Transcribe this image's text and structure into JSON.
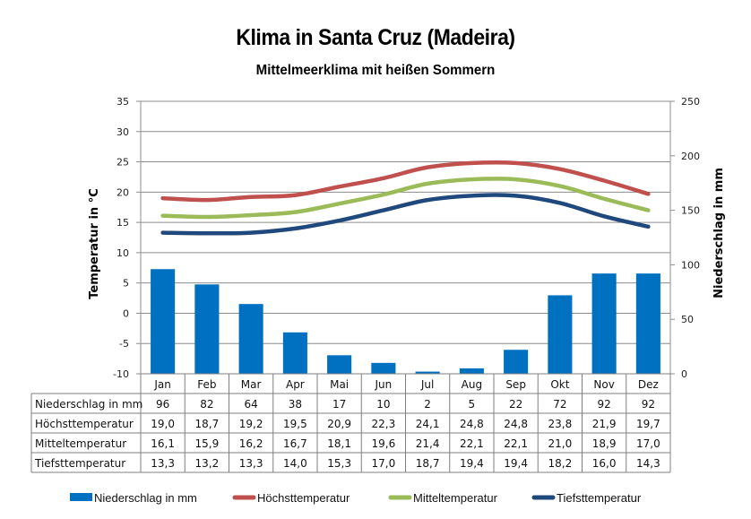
{
  "header": {
    "title": "Klima in Santa Cruz (Madeira)",
    "subtitle": "Mittelmeerklima mit heißen Sommern"
  },
  "chart_data": {
    "type": "bar+line",
    "title": "Klima in Santa Cruz (Madeira)",
    "subtitle": "Mittelmeerklima mit heißen Sommern",
    "categories": [
      "Jan",
      "Feb",
      "Mar",
      "Apr",
      "Mai",
      "Jun",
      "Jul",
      "Aug",
      "Sep",
      "Okt",
      "Nov",
      "Dez"
    ],
    "y_left": {
      "label": "Temperatur  in  °C",
      "range": [
        -10,
        35
      ],
      "ticks": [
        "35",
        "30",
        "25",
        "20",
        "15",
        "10",
        "5",
        "0",
        "-5",
        "-10"
      ]
    },
    "y_right": {
      "label": "Niederschlag  in  mm",
      "range": [
        0,
        250
      ],
      "ticks": [
        "250",
        "200",
        "150",
        "100",
        "50",
        "0"
      ]
    },
    "grid": true,
    "series": [
      {
        "name": "Niederschlag in mm",
        "type": "bar",
        "axis": "right",
        "color": "#0070C0",
        "values": [
          96,
          82,
          64,
          38,
          17,
          10,
          2,
          5,
          22,
          72,
          92,
          92
        ],
        "labels": [
          "96",
          "82",
          "64",
          "38",
          "17",
          "10",
          "2",
          "5",
          "22",
          "72",
          "92",
          "92"
        ]
      },
      {
        "name": "Höchsttemperatur",
        "type": "line",
        "axis": "left",
        "color": "#C0504D",
        "values": [
          19.0,
          18.7,
          19.2,
          19.5,
          20.9,
          22.3,
          24.1,
          24.8,
          24.8,
          23.8,
          21.9,
          19.7
        ],
        "labels": [
          "19,0",
          "18,7",
          "19,2",
          "19,5",
          "20,9",
          "22,3",
          "24,1",
          "24,8",
          "24,8",
          "23,8",
          "21,9",
          "19,7"
        ]
      },
      {
        "name": "Mitteltemperatur",
        "type": "line",
        "axis": "left",
        "color": "#9BBB59",
        "values": [
          16.1,
          15.9,
          16.2,
          16.7,
          18.1,
          19.6,
          21.4,
          22.1,
          22.1,
          21.0,
          18.9,
          17.0
        ],
        "labels": [
          "16,1",
          "15,9",
          "16,2",
          "16,7",
          "18,1",
          "19,6",
          "21,4",
          "22,1",
          "22,1",
          "21,0",
          "18,9",
          "17,0"
        ]
      },
      {
        "name": "Tiefsttemperatur",
        "type": "line",
        "axis": "left",
        "color": "#1F497D",
        "values": [
          13.3,
          13.2,
          13.3,
          14.0,
          15.3,
          17.0,
          18.7,
          19.4,
          19.4,
          18.2,
          16.0,
          14.3
        ],
        "labels": [
          "13,3",
          "13,2",
          "13,3",
          "14,0",
          "15,3",
          "17,0",
          "18,7",
          "19,4",
          "19,4",
          "18,2",
          "16,0",
          "14,3"
        ]
      }
    ],
    "legend": {
      "placement": "bottom"
    },
    "data_table": true
  }
}
